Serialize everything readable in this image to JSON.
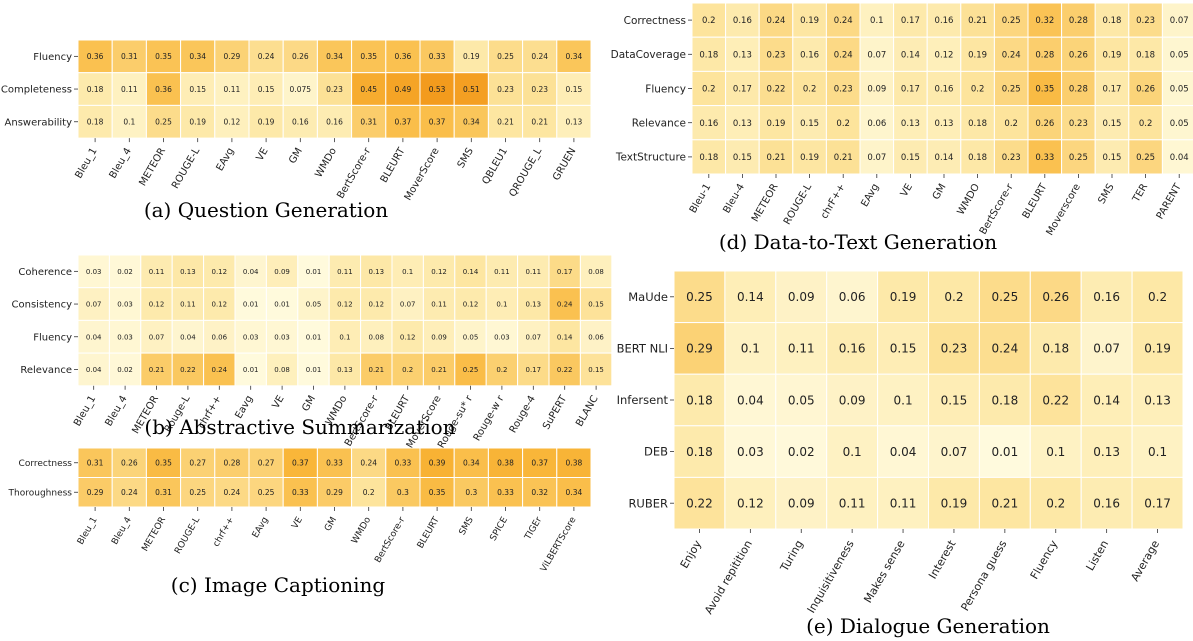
{
  "colorscale": [
    "#fffbe0",
    "#fde8a6",
    "#f9b73a",
    "#f08c0e"
  ],
  "chart_data": [
    {
      "type": "heatmap",
      "caption": "(a) Question Generation",
      "rows": [
        "Fluency",
        "Completeness",
        "Answerability"
      ],
      "cols": [
        "Bleu_1",
        "Bleu_4",
        "METEOR",
        "ROUGE-L",
        "EAvg",
        "VE",
        "GM",
        "WMDo",
        "BertScore-r",
        "BLEURT",
        "MoverScore",
        "SMS",
        "QBLEU1",
        "QROUGE_L",
        "GRUEN"
      ],
      "values": [
        [
          0.36,
          0.31,
          0.35,
          0.34,
          0.29,
          0.24,
          0.26,
          0.34,
          0.35,
          0.36,
          0.33,
          0.19,
          0.25,
          0.24,
          0.34
        ],
        [
          0.18,
          0.11,
          0.36,
          0.15,
          0.11,
          0.15,
          0.075,
          0.23,
          0.45,
          0.49,
          0.53,
          0.51,
          0.23,
          0.23,
          0.15
        ],
        [
          0.18,
          0.1,
          0.25,
          0.19,
          0.12,
          0.19,
          0.16,
          0.16,
          0.31,
          0.37,
          0.37,
          0.34,
          0.21,
          0.21,
          0.13
        ]
      ]
    },
    {
      "type": "heatmap",
      "caption": "(b) Abstractive Summarization",
      "rows": [
        "Coherence",
        "Consistency",
        "Fluency",
        "Relevance"
      ],
      "cols": [
        "Bleu_1",
        "Bleu_4",
        "METEOR",
        "Rouge-L",
        "chrf++",
        "Eavg",
        "VE",
        "GM",
        "WMDo",
        "BertScore-r",
        "BLEURT",
        "MoverScore",
        "Rouge-su* r",
        "Rouge-w r",
        "Rouge-4",
        "SuPERT",
        "BLANC"
      ],
      "values": [
        [
          0.03,
          0.02,
          0.11,
          0.13,
          0.12,
          0.04,
          0.09,
          0.01,
          0.11,
          0.13,
          0.1,
          0.12,
          0.14,
          0.11,
          0.11,
          0.17,
          0.08
        ],
        [
          0.07,
          0.03,
          0.12,
          0.11,
          0.12,
          0.01,
          0.01,
          0.05,
          0.12,
          0.12,
          0.07,
          0.11,
          0.12,
          0.1,
          0.13,
          0.24,
          0.15
        ],
        [
          0.04,
          0.03,
          0.07,
          0.04,
          0.06,
          0.03,
          0.03,
          0.01,
          0.1,
          0.08,
          0.12,
          0.09,
          0.05,
          0.03,
          0.07,
          0.14,
          0.06
        ],
        [
          0.04,
          0.02,
          0.21,
          0.22,
          0.24,
          0.01,
          0.08,
          0.01,
          0.13,
          0.21,
          0.2,
          0.21,
          0.25,
          0.2,
          0.17,
          0.22,
          0.15
        ]
      ]
    },
    {
      "type": "heatmap",
      "caption": "(c) Image Captioning",
      "rows": [
        "Correctness",
        "Thoroughness"
      ],
      "cols": [
        "Bleu_1",
        "Bleu_4",
        "METEOR",
        "ROUGE-L",
        "chrf++",
        "EAvg",
        "VE",
        "GM",
        "WMDo",
        "BertScore-r",
        "BLEURT",
        "SMS",
        "SPICE",
        "TIGEr",
        "ViLBERTScore"
      ],
      "values": [
        [
          0.31,
          0.26,
          0.35,
          0.27,
          0.28,
          0.27,
          0.37,
          0.33,
          0.24,
          0.33,
          0.39,
          0.34,
          0.38,
          0.37,
          0.38
        ],
        [
          0.29,
          0.24,
          0.31,
          0.25,
          0.24,
          0.25,
          0.33,
          0.29,
          0.2,
          0.3,
          0.35,
          0.3,
          0.33,
          0.32,
          0.34
        ]
      ]
    },
    {
      "type": "heatmap",
      "caption": "(d) Data-to-Text Generation",
      "rows": [
        "Correctness",
        "DataCoverage",
        "Fluency",
        "Relevance",
        "TextStructure"
      ],
      "cols": [
        "Bleu-1",
        "Bleu-4",
        "METEOR",
        "ROUGE-L",
        "chrF++",
        "EAvg",
        "VE",
        "GM",
        "WMDO",
        "BertScore-r",
        "BLEURT",
        "Moverscore",
        "SMS",
        "TER",
        "PARENT"
      ],
      "values": [
        [
          0.2,
          0.16,
          0.24,
          0.19,
          0.24,
          0.1,
          0.17,
          0.16,
          0.21,
          0.25,
          0.32,
          0.28,
          0.18,
          0.23,
          0.07
        ],
        [
          0.18,
          0.13,
          0.23,
          0.16,
          0.24,
          0.07,
          0.14,
          0.12,
          0.19,
          0.24,
          0.28,
          0.26,
          0.19,
          0.18,
          0.05
        ],
        [
          0.2,
          0.17,
          0.22,
          0.2,
          0.23,
          0.09,
          0.17,
          0.16,
          0.2,
          0.25,
          0.35,
          0.28,
          0.17,
          0.26,
          0.05
        ],
        [
          0.16,
          0.13,
          0.19,
          0.15,
          0.2,
          0.06,
          0.13,
          0.13,
          0.18,
          0.2,
          0.26,
          0.23,
          0.15,
          0.2,
          0.05
        ],
        [
          0.18,
          0.15,
          0.21,
          0.19,
          0.21,
          0.07,
          0.15,
          0.14,
          0.18,
          0.23,
          0.33,
          0.25,
          0.15,
          0.25,
          0.04
        ]
      ]
    },
    {
      "type": "heatmap",
      "caption": "(e) Dialogue Generation",
      "rows": [
        "MaUde",
        "BERT NLI",
        "Infersent",
        "DEB",
        "RUBER"
      ],
      "cols": [
        "Enjoy",
        "Avoid repitition",
        "Turing",
        "Inquisitiveness",
        "Makes sense",
        "Interest",
        "Persona guess",
        "Fluency",
        "Listen",
        "Average"
      ],
      "values": [
        [
          0.25,
          0.14,
          0.09,
          0.06,
          0.19,
          0.2,
          0.25,
          0.26,
          0.16,
          0.2
        ],
        [
          0.29,
          0.1,
          0.11,
          0.16,
          0.15,
          0.23,
          0.24,
          0.18,
          0.07,
          0.19
        ],
        [
          0.18,
          0.04,
          0.05,
          0.09,
          0.1,
          0.15,
          0.18,
          0.22,
          0.14,
          0.13
        ],
        [
          0.18,
          0.03,
          0.02,
          0.1,
          0.04,
          0.07,
          0.01,
          0.1,
          0.13,
          0.1
        ],
        [
          0.22,
          0.12,
          0.09,
          0.11,
          0.11,
          0.19,
          0.21,
          0.2,
          0.16,
          0.17
        ]
      ]
    }
  ]
}
